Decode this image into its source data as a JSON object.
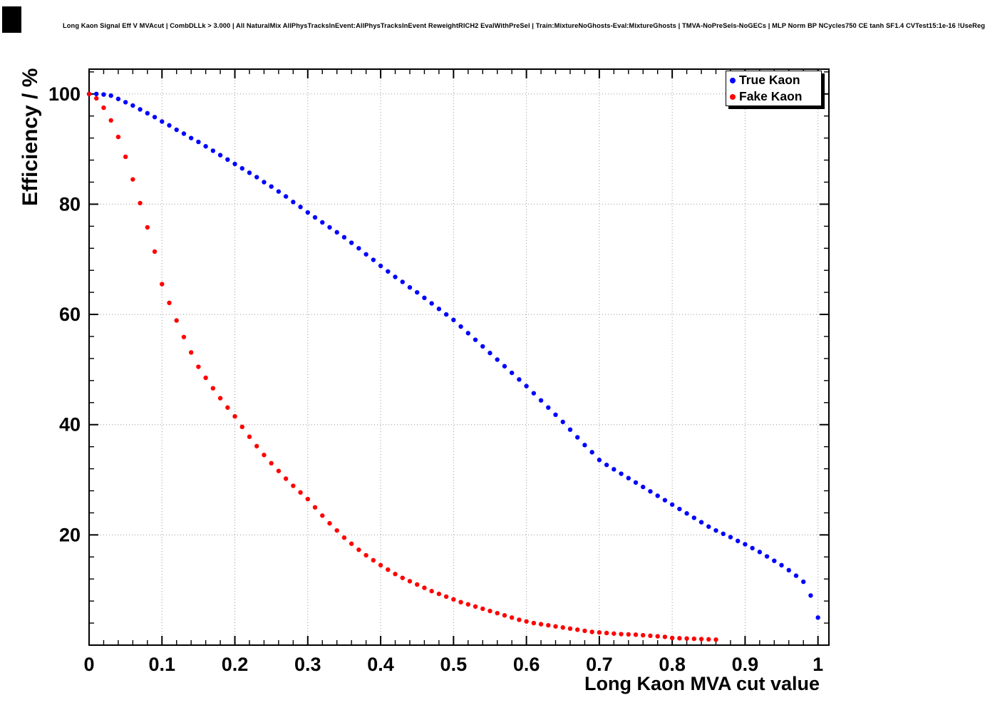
{
  "title": "Long Kaon Signal Eff V MVAcut | CombDLLk > 3.000 | All NaturalMix AllPhysTracksInEvent:AllPhysTracksInEvent ReweightRICH2 EvalWithPreSel | Train:MixtureNoGhosts-Eval:MixtureGhosts | TMVA-NoPreSels-NoGECs | MLP Norm BP NCycles750 CE tanh SF1.4 CVTest15:1e-16 !UseReg",
  "chart_data": {
    "type": "scatter",
    "title": "Long Kaon Signal Eff V MVAcut",
    "xlabel": "Long Kaon MVA cut value",
    "ylabel": "Efficiency / %",
    "xlim": [
      0,
      1.015
    ],
    "ylim": [
      0,
      104.5
    ],
    "grid": true,
    "legend_position": "top-right",
    "x_tick_values": [
      0,
      0.1,
      0.2,
      0.3,
      0.4,
      0.5,
      0.6,
      0.7,
      0.8,
      0.9,
      1
    ],
    "x_ticks": [
      "0",
      "0.1",
      "0.2",
      "0.3",
      "0.4",
      "0.5",
      "0.6",
      "0.7",
      "0.8",
      "0.9",
      "1"
    ],
    "y_tick_values": [
      20,
      40,
      60,
      80,
      100
    ],
    "y_ticks": [
      "20",
      "40",
      "60",
      "80",
      "100"
    ],
    "x_minor_step": 0.02,
    "y_minor_step": 4,
    "series": [
      {
        "name": "True Kaon",
        "color": "#0000ff",
        "marker": "dot",
        "x_start": 0,
        "x_step": 0.01,
        "values": [
          100,
          100,
          99.9,
          99.7,
          99.1,
          98.5,
          97.9,
          97.2,
          96.5,
          95.8,
          95,
          94.3,
          93.5,
          92.8,
          92,
          91.3,
          90.5,
          89.7,
          88.9,
          88.1,
          87.3,
          86.5,
          85.7,
          84.9,
          84,
          83.2,
          82.3,
          81.4,
          80.4,
          79.5,
          78.5,
          77.6,
          76.7,
          75.8,
          74.9,
          74,
          73,
          72,
          70.9,
          69.9,
          68.8,
          67.8,
          66.8,
          65.9,
          64.9,
          64,
          63,
          62,
          61,
          60,
          59,
          57.8,
          56.6,
          55.4,
          54.2,
          53,
          51.8,
          50.6,
          49.4,
          48.2,
          47,
          45.7,
          44.4,
          43.1,
          41.8,
          40.5,
          39.1,
          37.7,
          36.3,
          35,
          33.6,
          32.7,
          31.9,
          31.1,
          30.3,
          29.5,
          28.7,
          27.9,
          27.1,
          26.3,
          25.5,
          24.7,
          23.9,
          23.1,
          22.3,
          21.5,
          20.8,
          20.2,
          19.6,
          18.9,
          18.3,
          17.6,
          16.9,
          16.1,
          15.3,
          14.5,
          13.6,
          12.6,
          11.5,
          9,
          5
        ]
      },
      {
        "name": "Fake Kaon",
        "color": "#ff0000",
        "marker": "dot",
        "x_start": 0,
        "x_step": 0.01,
        "values": [
          100,
          99.2,
          97.5,
          95.2,
          92.2,
          88.6,
          84.5,
          80.2,
          75.8,
          71.4,
          65.5,
          62.1,
          58.9,
          55.9,
          53.1,
          50.5,
          48.5,
          46.6,
          44.8,
          43.1,
          41.5,
          39.6,
          37.8,
          36.1,
          34.5,
          33,
          31.6,
          30.2,
          28.9,
          27.7,
          26.5,
          25,
          23.5,
          22.1,
          20.8,
          19.5,
          18.4,
          17.3,
          16.3,
          15.4,
          14.5,
          13.7,
          12.9,
          12.2,
          11.6,
          11,
          10.4,
          9.8,
          9.3,
          8.8,
          8.3,
          7.8,
          7.4,
          7,
          6.6,
          6.2,
          5.8,
          5.4,
          5,
          4.6,
          4.3,
          4,
          3.8,
          3.6,
          3.4,
          3.2,
          3,
          2.8,
          2.6,
          2.4,
          2.3,
          2.2,
          2.1,
          2,
          1.95,
          1.9,
          1.8,
          1.7,
          1.6,
          1.5,
          1.3,
          1.25,
          1.2,
          1.15,
          1.1,
          1.05,
          1
        ]
      }
    ]
  }
}
